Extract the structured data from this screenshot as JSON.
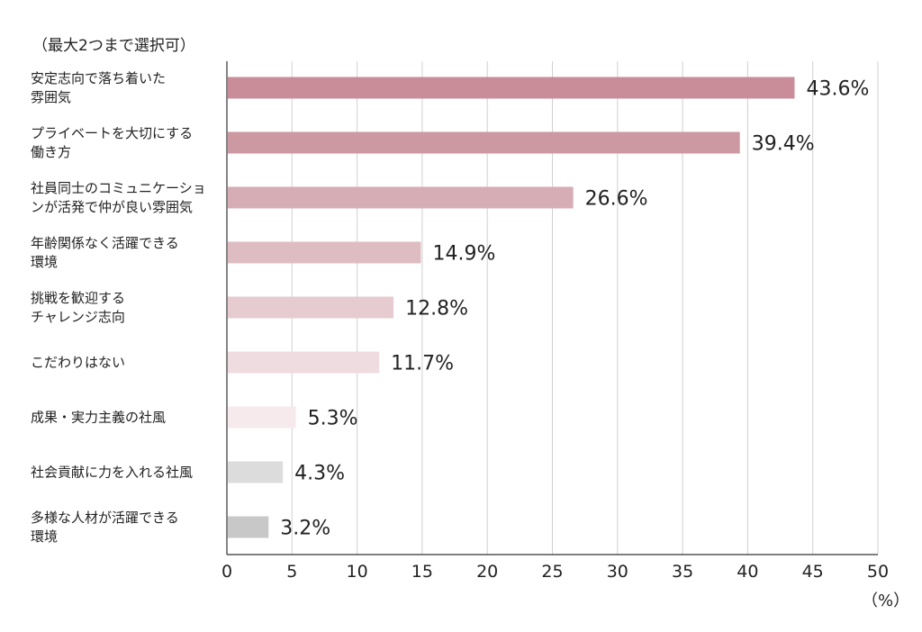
{
  "chart_data": {
    "type": "bar",
    "orientation": "horizontal",
    "note": "（最大2つまで選択可）",
    "unit": "（%）",
    "categories": [
      [
        "安定志向で落ち着いた",
        "雰囲気"
      ],
      [
        "プライベートを大切にする",
        "働き方"
      ],
      [
        "社員同士のコミュニケーショ",
        "ンが活発で仲が良い雰囲気"
      ],
      [
        "年齢関係なく活躍できる",
        "環境"
      ],
      [
        "挑戦を歓迎する",
        "チャレンジ志向"
      ],
      [
        "こだわりはない"
      ],
      [
        "成果・実力主義の社風"
      ],
      [
        "社会貢献に力を入れる社風"
      ],
      [
        "多様な人材が活躍できる",
        "環境"
      ]
    ],
    "values": [
      43.6,
      39.4,
      26.6,
      14.9,
      12.8,
      11.7,
      5.3,
      4.3,
      3.2
    ],
    "value_labels": [
      "43.6%",
      "39.4%",
      "26.6%",
      "14.9%",
      "12.8%",
      "11.7%",
      "5.3%",
      "4.3%",
      "3.2%"
    ],
    "bar_colors": [
      "#c98d99",
      "#cc99a3",
      "#d6adb5",
      "#ddbcc2",
      "#e6cbd0",
      "#efdce0",
      "#f6eaed",
      "#dcdcdc",
      "#c8c8c8"
    ],
    "xlim": [
      0,
      50
    ],
    "xticks": [
      0,
      5,
      10,
      15,
      20,
      25,
      30,
      35,
      40,
      45,
      50
    ],
    "grid": true
  }
}
